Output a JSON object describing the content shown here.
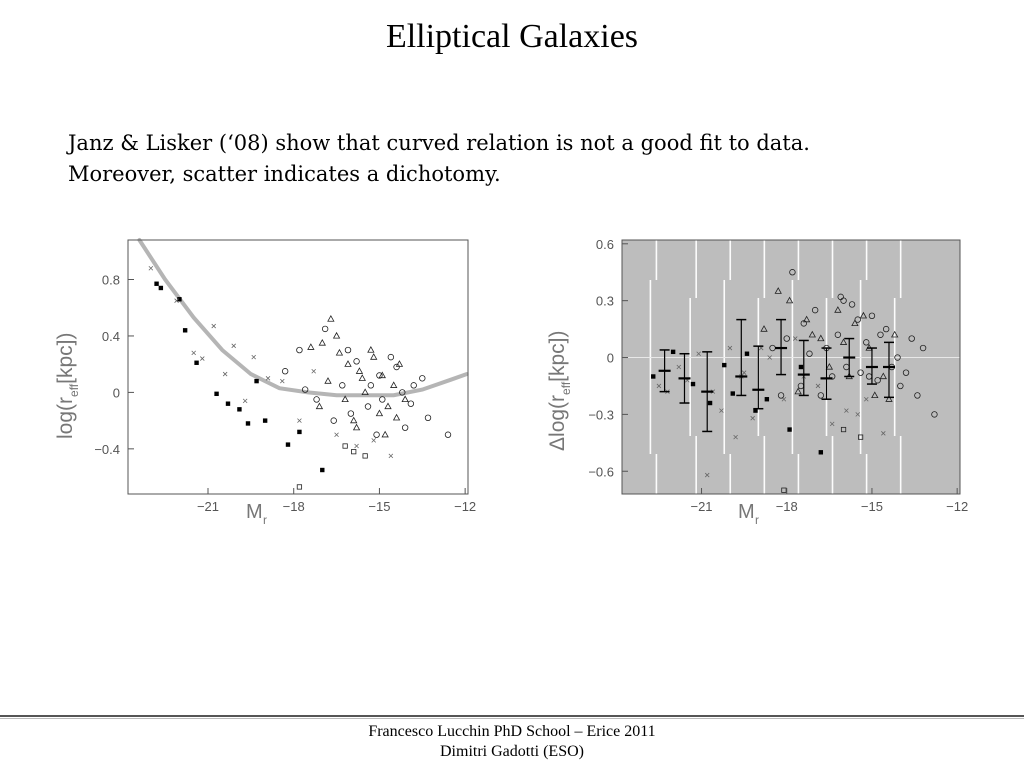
{
  "slide": {
    "title": "Elliptical Galaxies",
    "body_lines": [
      "Janz & Lisker (‘08) show that curved relation is not a good fit to data.",
      "Moreover, scatter indicates a dichotomy."
    ],
    "footer_lines": [
      "Francesco Lucchin PhD School – Erice 2011",
      "Dimitri Gadotti (ESO)"
    ]
  },
  "chart_data": [
    {
      "type": "scatter",
      "title": "",
      "xlabel": "M_r",
      "ylabel": "log(r_eff[kpc])",
      "xlabel_main": "M",
      "xlabel_sub": "r",
      "ylabel_text": "log(r",
      "ylabel_sub": "eff",
      "ylabel_unit": "[kpc])",
      "xlim": [
        -23.8,
        -11.9
      ],
      "ylim": [
        -0.72,
        1.08
      ],
      "xticks": [
        -21,
        -18,
        -15,
        -12
      ],
      "xtick_labels": [
        "−21",
        "−18",
        "−15",
        "−12"
      ],
      "yticks": [
        0.8,
        0.4,
        0,
        -0.4
      ],
      "ytick_labels": [
        "0.8",
        "0.4",
        "0",
        "−0.4"
      ],
      "grid": false,
      "background": "#ffffff",
      "curve": {
        "name": "",
        "color": "#b5b5b5",
        "x": [
          -23.4,
          -22.5,
          -21.5,
          -20.5,
          -19.5,
          -18.5,
          -17.5,
          -16.5,
          -15.5,
          -14.5,
          -13.5,
          -12.5,
          -11.95
        ],
        "y": [
          1.08,
          0.8,
          0.53,
          0.3,
          0.13,
          0.03,
          0.0,
          -0.02,
          -0.02,
          -0.02,
          0.02,
          0.09,
          0.13
        ]
      },
      "series": [
        {
          "name": "",
          "marker": "filled-square",
          "x": [
            -22.8,
            -22.65,
            -22.0,
            -21.8,
            -21.4,
            -20.7,
            -20.3,
            -19.9,
            -19.6,
            -19.3,
            -19.0,
            -18.2,
            -17.8,
            -17.0
          ],
          "y": [
            0.77,
            0.74,
            0.66,
            0.44,
            0.21,
            -0.01,
            -0.08,
            -0.12,
            -0.22,
            0.08,
            -0.2,
            -0.37,
            -0.28,
            -0.55
          ]
        },
        {
          "name": "",
          "marker": "cross",
          "x": [
            -23.0,
            -22.1,
            -21.5,
            -21.2,
            -20.8,
            -20.4,
            -20.1,
            -19.7,
            -19.4,
            -18.9,
            -18.4,
            -17.8,
            -17.3,
            -16.5,
            -15.8,
            -15.2,
            -14.6
          ],
          "y": [
            0.88,
            0.65,
            0.28,
            0.24,
            0.47,
            0.13,
            0.33,
            -0.06,
            0.25,
            0.1,
            0.08,
            -0.2,
            0.15,
            -0.3,
            -0.38,
            -0.34,
            -0.45
          ]
        },
        {
          "name": "",
          "marker": "open-triangle",
          "x": [
            -17.4,
            -17.0,
            -16.5,
            -16.1,
            -15.7,
            -15.3,
            -14.9,
            -14.5,
            -14.1,
            -16.8,
            -15.5,
            -14.7,
            -16.2,
            -15.0,
            -14.3,
            -17.1,
            -15.9,
            -15.2,
            -14.8,
            -16.4,
            -15.6,
            -14.4,
            -16.7,
            -15.8
          ],
          "y": [
            0.32,
            0.35,
            0.4,
            0.2,
            0.15,
            0.3,
            0.12,
            0.05,
            -0.05,
            0.08,
            0.0,
            -0.1,
            -0.05,
            -0.15,
            0.2,
            -0.1,
            -0.2,
            0.25,
            -0.3,
            0.28,
            0.1,
            -0.18,
            0.52,
            -0.25
          ]
        },
        {
          "name": "",
          "marker": "open-circle",
          "x": [
            -18.3,
            -17.6,
            -16.9,
            -16.3,
            -15.8,
            -15.4,
            -15.0,
            -14.6,
            -14.2,
            -13.8,
            -13.3,
            -12.6,
            -17.2,
            -16.1,
            -15.1,
            -14.4,
            -13.9,
            -16.6,
            -15.3,
            -14.1,
            -13.5,
            -17.8,
            -16.0,
            -14.9
          ],
          "y": [
            0.15,
            0.02,
            0.45,
            0.05,
            0.22,
            -0.1,
            0.12,
            0.25,
            0.0,
            0.05,
            -0.18,
            -0.3,
            -0.05,
            0.3,
            -0.3,
            0.18,
            -0.08,
            -0.2,
            0.05,
            -0.25,
            0.1,
            0.3,
            -0.15,
            -0.05
          ]
        },
        {
          "name": "",
          "marker": "open-square",
          "x": [
            -16.2,
            -15.5,
            -15.9,
            -17.8
          ],
          "y": [
            -0.38,
            -0.45,
            -0.42,
            -0.67
          ]
        }
      ]
    },
    {
      "type": "scatter",
      "title": "",
      "xlabel": "M_r",
      "ylabel": "Δlog(r_eff[kpc])",
      "xlabel_main": "M",
      "xlabel_sub": "r",
      "ylabel_text": "Δlog(r",
      "ylabel_sub": "eff",
      "ylabel_unit": "[kpc])",
      "xlim": [
        -23.8,
        -11.9
      ],
      "ylim": [
        -0.72,
        0.62
      ],
      "xticks": [
        -21,
        -18,
        -15,
        -12
      ],
      "xtick_labels": [
        "−21",
        "−18",
        "−15",
        "−12"
      ],
      "yticks": [
        0.6,
        0.3,
        0,
        -0.3,
        -0.6
      ],
      "ytick_labels": [
        "0.6",
        "0.3",
        "0",
        "−0.3",
        "−0.6"
      ],
      "grid": false,
      "background": "#bdbdbd",
      "bin_edges": [
        -22.8,
        -21.4,
        -20.2,
        -19.0,
        -17.8,
        -16.6,
        -15.4,
        -14.2
      ],
      "error_bars": {
        "x": [
          -22.3,
          -21.6,
          -20.8,
          -19.6,
          -19.0,
          -18.2,
          -17.4,
          -16.6,
          -15.8,
          -15.0,
          -14.4
        ],
        "center": [
          -0.07,
          -0.11,
          -0.18,
          -0.1,
          -0.17,
          0.05,
          -0.09,
          -0.11,
          0.0,
          -0.05,
          -0.05
        ],
        "lower": [
          -0.18,
          -0.24,
          -0.39,
          -0.2,
          -0.27,
          -0.09,
          -0.2,
          -0.22,
          -0.1,
          -0.14,
          -0.21
        ],
        "upper": [
          0.04,
          0.02,
          0.03,
          0.2,
          0.06,
          0.2,
          0.09,
          0.05,
          0.1,
          0.05,
          0.08
        ]
      },
      "series": [
        {
          "name": "",
          "marker": "filled-square",
          "x": [
            -22.7,
            -22.0,
            -21.3,
            -20.7,
            -20.2,
            -19.4,
            -19.1,
            -18.7,
            -17.9,
            -17.5,
            -16.8,
            -19.9
          ],
          "y": [
            -0.1,
            0.03,
            -0.14,
            -0.24,
            -0.04,
            0.02,
            -0.28,
            -0.22,
            -0.38,
            -0.05,
            -0.5,
            -0.19
          ]
        },
        {
          "name": "",
          "marker": "cross",
          "x": [
            -22.5,
            -21.8,
            -21.1,
            -20.6,
            -20.0,
            -19.6,
            -19.2,
            -18.6,
            -18.1,
            -17.4,
            -16.4,
            -15.5,
            -22.2,
            -21.5,
            -20.3,
            -19.8,
            -18.9,
            -17.7,
            -16.9,
            -15.9,
            -15.2,
            -14.6,
            -20.8,
            -19.5
          ],
          "y": [
            -0.15,
            -0.05,
            0.02,
            -0.18,
            0.05,
            -0.1,
            -0.32,
            0.0,
            -0.22,
            -0.1,
            -0.35,
            -0.3,
            -0.18,
            -0.12,
            -0.28,
            -0.42,
            0.05,
            0.1,
            -0.15,
            -0.28,
            -0.22,
            -0.4,
            -0.62,
            -0.08
          ]
        },
        {
          "name": "",
          "marker": "open-triangle",
          "x": [
            -18.8,
            -17.9,
            -17.3,
            -16.8,
            -16.2,
            -15.6,
            -15.1,
            -14.6,
            -14.2,
            -16.5,
            -15.3,
            -17.6,
            -16.0,
            -14.9,
            -18.3,
            -15.8,
            -14.4,
            -17.1
          ],
          "y": [
            0.15,
            0.3,
            0.2,
            0.1,
            0.25,
            0.18,
            0.05,
            -0.1,
            0.12,
            -0.05,
            0.22,
            -0.18,
            0.08,
            -0.2,
            0.35,
            -0.1,
            -0.22,
            0.12
          ]
        },
        {
          "name": "",
          "marker": "open-circle",
          "x": [
            -18.5,
            -18.0,
            -17.5,
            -17.0,
            -16.6,
            -16.2,
            -15.9,
            -15.5,
            -15.2,
            -14.8,
            -14.5,
            -14.1,
            -13.8,
            -13.4,
            -12.8,
            -18.2,
            -17.2,
            -16.4,
            -15.7,
            -15.0,
            -14.3,
            -13.6,
            -17.8,
            -16.8,
            -16.0,
            -15.4,
            -14.7,
            -14.0,
            -13.2,
            -17.4,
            -16.1,
            -15.1
          ],
          "y": [
            0.05,
            0.1,
            -0.15,
            0.25,
            0.05,
            0.12,
            -0.05,
            0.2,
            0.08,
            -0.12,
            0.15,
            0.0,
            -0.08,
            -0.2,
            -0.3,
            -0.2,
            0.02,
            -0.1,
            0.28,
            0.22,
            -0.05,
            0.1,
            0.45,
            -0.2,
            0.3,
            -0.08,
            0.12,
            -0.15,
            0.05,
            0.18,
            0.32,
            -0.1
          ]
        },
        {
          "name": "",
          "marker": "open-square",
          "x": [
            -16.0,
            -15.4,
            -18.1
          ],
          "y": [
            -0.38,
            -0.42,
            -0.7
          ]
        }
      ]
    }
  ]
}
